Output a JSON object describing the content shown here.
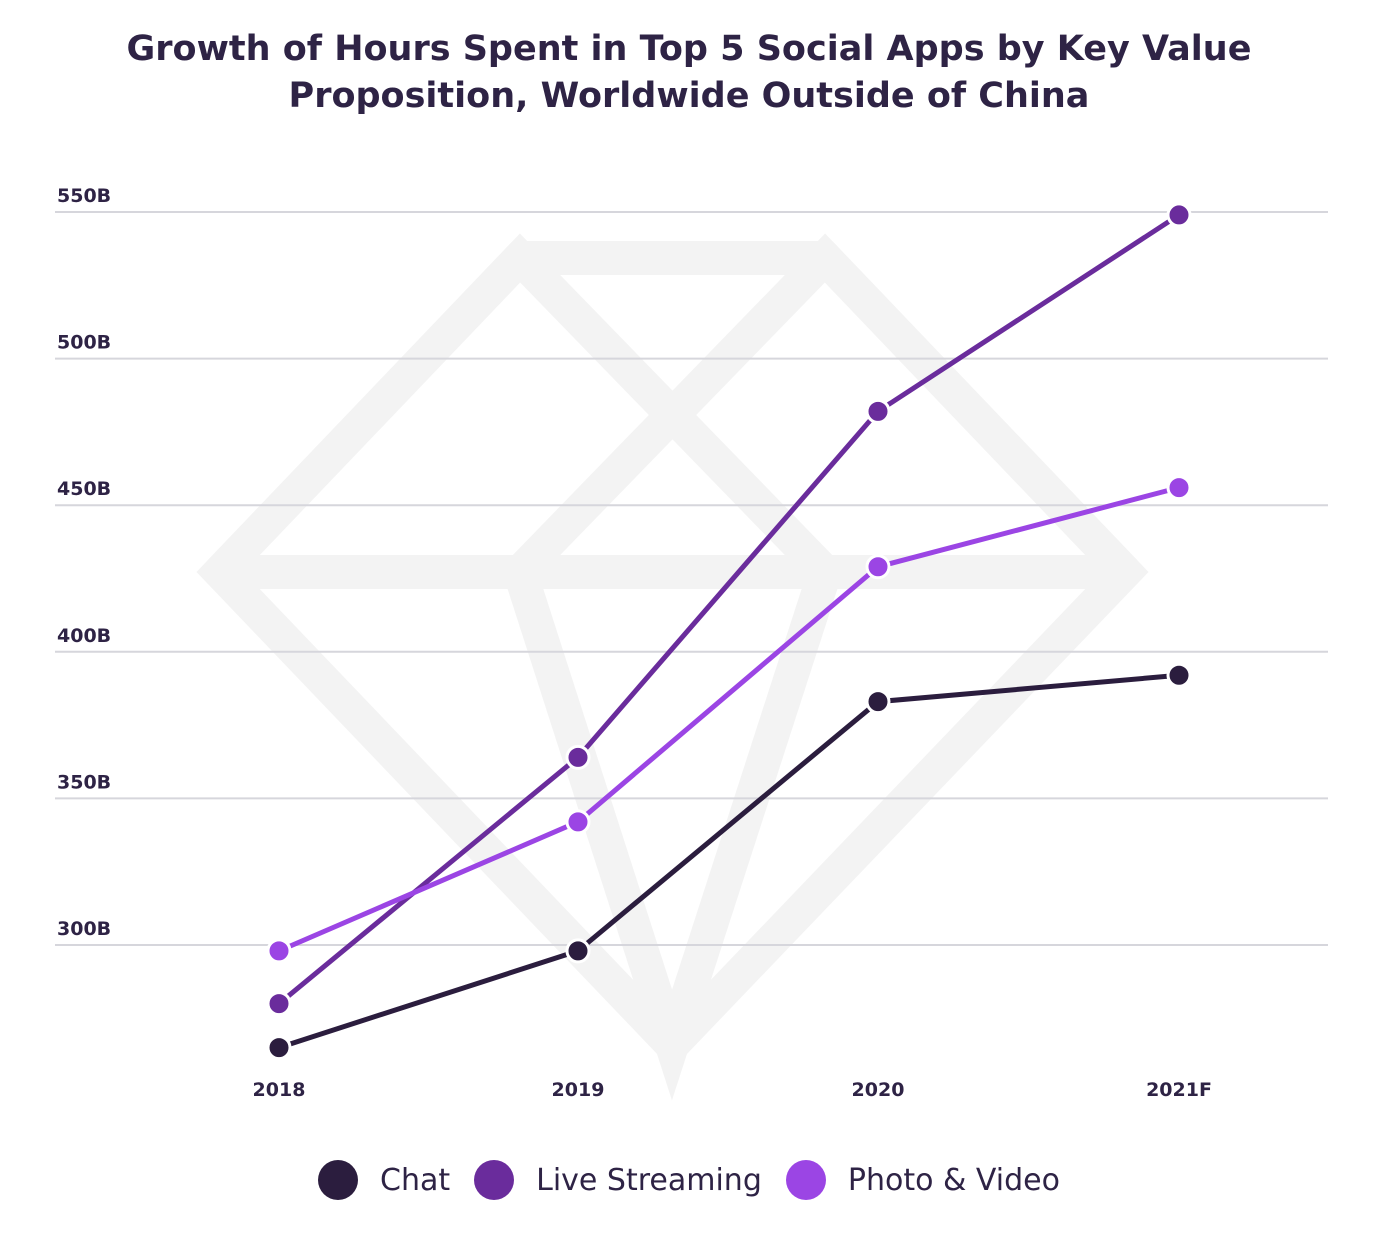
{
  "chart_data": {
    "type": "line",
    "title_lines": [
      "Growth of Hours Spent in Top 5 Social Apps by Key Value",
      "Proposition, Worldwide Outside of China"
    ],
    "categories": [
      "2018",
      "2019",
      "2020",
      "2021F"
    ],
    "y_ticks": [
      "300B",
      "350B",
      "400B",
      "450B",
      "500B",
      "550B"
    ],
    "y_tick_values": [
      300,
      350,
      400,
      450,
      500,
      550
    ],
    "ylim": [
      245,
      560
    ],
    "grid": true,
    "legend_position": "bottom",
    "series": [
      {
        "name": "Chat",
        "color": "#2b1d3e",
        "values": [
          265,
          298,
          383,
          392
        ]
      },
      {
        "name": "Live Streaming",
        "color": "#6a2c9c",
        "values": [
          280,
          364,
          482,
          549
        ]
      },
      {
        "name": "Photo & Video",
        "color": "#9b45e4",
        "values": [
          298,
          342,
          429,
          456
        ]
      }
    ]
  }
}
